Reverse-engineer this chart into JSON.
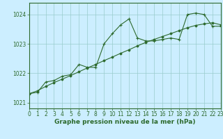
{
  "x": [
    0,
    1,
    2,
    3,
    4,
    5,
    6,
    7,
    8,
    9,
    10,
    11,
    12,
    13,
    14,
    15,
    16,
    17,
    18,
    19,
    20,
    21,
    22,
    23
  ],
  "line_zigzag": [
    1021.3,
    1021.35,
    1021.7,
    1021.75,
    1021.9,
    1021.95,
    1022.3,
    1022.2,
    1022.2,
    1023.0,
    1023.35,
    1023.65,
    1023.85,
    1023.2,
    1023.1,
    1023.1,
    1023.15,
    1023.2,
    1023.15,
    1024.0,
    1024.05,
    1024.0,
    1023.6,
    1023.6
  ],
  "line_smooth": [
    1021.3,
    1021.4,
    1021.55,
    1021.68,
    1021.8,
    1021.92,
    1022.05,
    1022.18,
    1022.3,
    1022.43,
    1022.55,
    1022.68,
    1022.8,
    1022.93,
    1023.05,
    1023.15,
    1023.25,
    1023.35,
    1023.45,
    1023.55,
    1023.63,
    1023.68,
    1023.72,
    1023.65
  ],
  "line_color": "#2d6a2d",
  "bg_color": "#cceeff",
  "grid_color": "#99cccc",
  "axis_color": "#2d6a2d",
  "xlabel": "Graphe pression niveau de la mer (hPa)",
  "yticks": [
    1021,
    1022,
    1023,
    1024
  ],
  "xlim": [
    0,
    23
  ],
  "ylim": [
    1020.8,
    1024.4
  ],
  "tick_color": "#2d6a2d",
  "xlabel_color": "#2d6a2d",
  "xlabel_fontsize": 6.5,
  "tick_fontsize": 5.5
}
